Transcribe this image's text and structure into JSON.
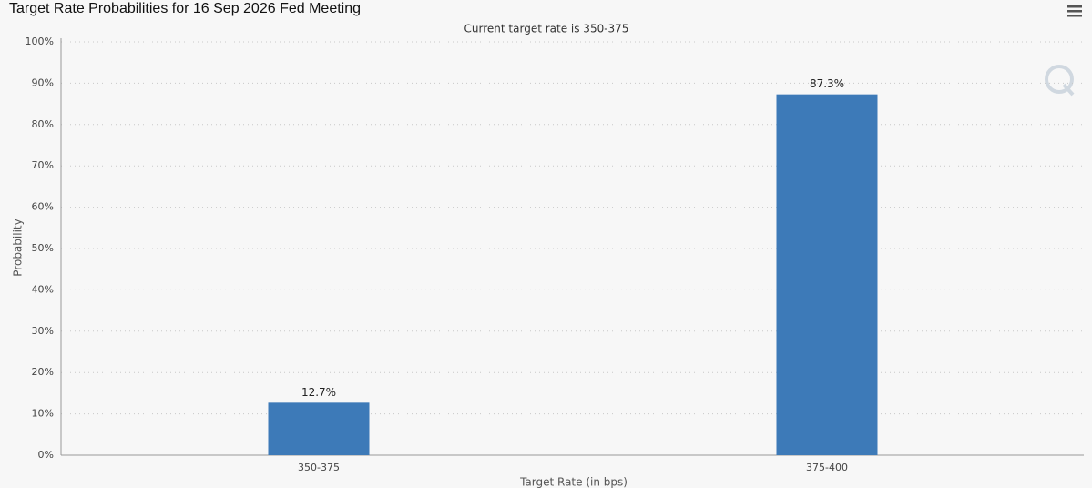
{
  "chart_data": {
    "type": "bar",
    "title": "Target Rate Probabilities for 16 Sep 2026 Fed Meeting",
    "subtitle": "Current target rate is 350-375",
    "x_label": "Target Rate (in bps)",
    "y_label": "Probability",
    "categories": [
      "350-375",
      "375-400"
    ],
    "values": [
      12.7,
      87.3
    ],
    "value_labels": [
      "12.7%",
      "87.3%"
    ],
    "color": "#3d7ab8",
    "ylim": [
      0,
      100
    ],
    "yticks": [
      {
        "value": 0,
        "label": "0%"
      },
      {
        "value": 10,
        "label": "10%"
      },
      {
        "value": 20,
        "label": "20%"
      },
      {
        "value": 30,
        "label": "30%"
      },
      {
        "value": 40,
        "label": "40%"
      },
      {
        "value": 50,
        "label": "50%"
      },
      {
        "value": 60,
        "label": "60%"
      },
      {
        "value": 70,
        "label": "70%"
      },
      {
        "value": 80,
        "label": "80%"
      },
      {
        "value": 90,
        "label": "90%"
      },
      {
        "value": 100,
        "label": "100%"
      }
    ],
    "grid": true
  }
}
